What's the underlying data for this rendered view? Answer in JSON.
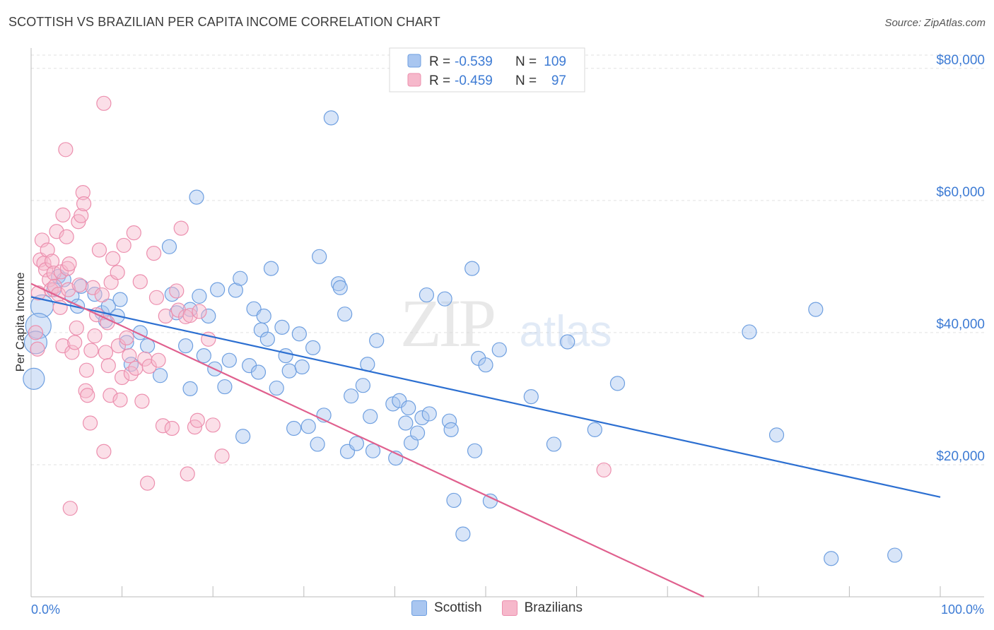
{
  "title": "SCOTTISH VS BRAZILIAN PER CAPITA INCOME CORRELATION CHART",
  "source": "Source: ZipAtlas.com",
  "watermark": {
    "zip": "ZIP",
    "atlas": "atlas"
  },
  "colors": {
    "scottish_fill": "#a9c6f0",
    "scottish_stroke": "#6e9fe0",
    "scottish_line": "#2c6fd1",
    "brazilian_fill": "#f6b8cb",
    "brazilian_stroke": "#ec8fae",
    "brazilian_line": "#e0608e",
    "axis_label": "#3d7bd4",
    "grid": "#e2e2e2"
  },
  "legend_top": {
    "r_label": "R =",
    "n_label": "N =",
    "rows": [
      {
        "series": "Scottish",
        "r": "-0.539",
        "n": "109"
      },
      {
        "series": "Brazilian",
        "r": "-0.459",
        "n": "97"
      }
    ]
  },
  "legend_bottom": [
    "Scottish",
    "Brazilians"
  ],
  "chart_data": {
    "type": "scatter",
    "title": "SCOTTISH VS BRAZILIAN PER CAPITA INCOME CORRELATION CHART",
    "xlabel": "",
    "ylabel": "Per Capita Income",
    "xlim": [
      0,
      100
    ],
    "ylim": [
      0,
      85000
    ],
    "x_tick_labels": [
      "0.0%",
      "100.0%"
    ],
    "y_ticks": [
      20000,
      40000,
      60000,
      80000
    ],
    "y_tick_labels": [
      "$20,000",
      "$40,000",
      "$60,000",
      "$80,000"
    ],
    "grid": true,
    "legend_position": "top-center",
    "series": [
      {
        "name": "Scottish",
        "r": -0.539,
        "n": 109,
        "trend": {
          "x": [
            0,
            100
          ],
          "y": [
            45400,
            15100
          ]
        },
        "points": [
          [
            1.2,
            44000
          ],
          [
            0.8,
            41000
          ],
          [
            0.5,
            38500
          ],
          [
            0.3,
            33000
          ],
          [
            2.5,
            46500
          ],
          [
            3,
            48500
          ],
          [
            3.6,
            48000
          ],
          [
            4.5,
            45500
          ],
          [
            5.1,
            44000
          ],
          [
            5.5,
            47000
          ],
          [
            7,
            45800
          ],
          [
            7.8,
            43000
          ],
          [
            8.2,
            41800
          ],
          [
            8.5,
            44000
          ],
          [
            9.5,
            42500
          ],
          [
            9.8,
            45000
          ],
          [
            10.5,
            38500
          ],
          [
            11,
            35200
          ],
          [
            12,
            40000
          ],
          [
            12.8,
            38000
          ],
          [
            14.2,
            33500
          ],
          [
            15.2,
            53000
          ],
          [
            15.5,
            45800
          ],
          [
            16,
            43000
          ],
          [
            17,
            38000
          ],
          [
            17.5,
            43500
          ],
          [
            17.5,
            31500
          ],
          [
            18.2,
            60500
          ],
          [
            18.5,
            45500
          ],
          [
            19,
            36500
          ],
          [
            19.5,
            42500
          ],
          [
            20.2,
            34500
          ],
          [
            20.5,
            46500
          ],
          [
            21.3,
            31800
          ],
          [
            21.8,
            35800
          ],
          [
            22.5,
            46400
          ],
          [
            23,
            48200
          ],
          [
            23.3,
            24300
          ],
          [
            24,
            35000
          ],
          [
            24.5,
            43600
          ],
          [
            25,
            34000
          ],
          [
            25.3,
            40400
          ],
          [
            25.6,
            42500
          ],
          [
            26,
            39000
          ],
          [
            26.4,
            49700
          ],
          [
            27,
            31600
          ],
          [
            27.6,
            40800
          ],
          [
            28,
            36500
          ],
          [
            28.4,
            34200
          ],
          [
            28.9,
            25500
          ],
          [
            29.5,
            39800
          ],
          [
            29.8,
            34800
          ],
          [
            30.5,
            25800
          ],
          [
            31,
            37700
          ],
          [
            31.5,
            23100
          ],
          [
            31.7,
            51500
          ],
          [
            32.2,
            27500
          ],
          [
            33,
            72500
          ],
          [
            33.8,
            47400
          ],
          [
            34,
            46800
          ],
          [
            34.5,
            42800
          ],
          [
            34.8,
            22000
          ],
          [
            35.2,
            30400
          ],
          [
            35.8,
            23200
          ],
          [
            36.5,
            32000
          ],
          [
            37,
            35200
          ],
          [
            37.3,
            27300
          ],
          [
            37.6,
            22100
          ],
          [
            38,
            38800
          ],
          [
            39.8,
            29200
          ],
          [
            40.1,
            21000
          ],
          [
            40.5,
            29700
          ],
          [
            41.2,
            26300
          ],
          [
            41.5,
            28600
          ],
          [
            41.8,
            23300
          ],
          [
            42.5,
            24800
          ],
          [
            43,
            27100
          ],
          [
            43.5,
            45700
          ],
          [
            43.8,
            27700
          ],
          [
            45.5,
            45100
          ],
          [
            46,
            26600
          ],
          [
            46.2,
            25300
          ],
          [
            46.5,
            14600
          ],
          [
            47.5,
            9500
          ],
          [
            48.5,
            49700
          ],
          [
            48.8,
            22100
          ],
          [
            49.2,
            36100
          ],
          [
            50,
            35100
          ],
          [
            50.5,
            14500
          ],
          [
            51.5,
            37400
          ],
          [
            55,
            30300
          ],
          [
            57.5,
            23100
          ],
          [
            59,
            38600
          ],
          [
            62,
            25300
          ],
          [
            64.5,
            32300
          ],
          [
            79,
            40100
          ],
          [
            82,
            24500
          ],
          [
            86.3,
            43500
          ],
          [
            88,
            5800
          ],
          [
            95,
            6300
          ]
        ]
      },
      {
        "name": "Brazilians",
        "r": -0.459,
        "n": 97,
        "trend": {
          "x": [
            0,
            74
          ],
          "y": [
            47400,
            0
          ]
        },
        "points": [
          [
            0.5,
            40000
          ],
          [
            0.7,
            37500
          ],
          [
            0.8,
            46000
          ],
          [
            1,
            51000
          ],
          [
            1.2,
            54000
          ],
          [
            1.4,
            50500
          ],
          [
            1.6,
            49500
          ],
          [
            1.8,
            52500
          ],
          [
            2,
            48000
          ],
          [
            2.2,
            46500
          ],
          [
            2.3,
            50800
          ],
          [
            2.5,
            49000
          ],
          [
            2.6,
            47000
          ],
          [
            2.8,
            55300
          ],
          [
            3,
            45800
          ],
          [
            3.2,
            43800
          ],
          [
            3.3,
            49200
          ],
          [
            3.5,
            38000
          ],
          [
            3.5,
            57800
          ],
          [
            3.8,
            67700
          ],
          [
            3.9,
            54500
          ],
          [
            4,
            49700
          ],
          [
            4.1,
            46500
          ],
          [
            4.2,
            50400
          ],
          [
            4.3,
            13400
          ],
          [
            4.5,
            37000
          ],
          [
            4.8,
            38500
          ],
          [
            5,
            40700
          ],
          [
            5.2,
            56800
          ],
          [
            5.3,
            47200
          ],
          [
            5.5,
            57700
          ],
          [
            5.7,
            61200
          ],
          [
            5.8,
            59500
          ],
          [
            6,
            31200
          ],
          [
            6.1,
            34300
          ],
          [
            6.2,
            30500
          ],
          [
            6.5,
            26300
          ],
          [
            6.6,
            37300
          ],
          [
            6.8,
            46800
          ],
          [
            7,
            39500
          ],
          [
            7.2,
            42700
          ],
          [
            7.5,
            52500
          ],
          [
            7.8,
            45700
          ],
          [
            8,
            22000
          ],
          [
            8,
            74700
          ],
          [
            8.2,
            37000
          ],
          [
            8.4,
            41500
          ],
          [
            8.5,
            35000
          ],
          [
            8.7,
            30500
          ],
          [
            8.8,
            47600
          ],
          [
            9,
            51200
          ],
          [
            9.5,
            49100
          ],
          [
            9.6,
            38000
          ],
          [
            9.8,
            29800
          ],
          [
            10,
            33200
          ],
          [
            10.2,
            53200
          ],
          [
            10.5,
            39200
          ],
          [
            10.8,
            36500
          ],
          [
            11,
            33800
          ],
          [
            11.3,
            55100
          ],
          [
            11.5,
            34600
          ],
          [
            12,
            47700
          ],
          [
            12.2,
            29600
          ],
          [
            12.5,
            36000
          ],
          [
            12.8,
            17200
          ],
          [
            13,
            34900
          ],
          [
            13.5,
            52000
          ],
          [
            13.8,
            45300
          ],
          [
            14,
            35800
          ],
          [
            14.5,
            25900
          ],
          [
            14.8,
            42500
          ],
          [
            15.5,
            25500
          ],
          [
            16,
            46300
          ],
          [
            16.2,
            43400
          ],
          [
            16.5,
            55800
          ],
          [
            17,
            42400
          ],
          [
            17.2,
            18600
          ],
          [
            17.5,
            42600
          ],
          [
            18,
            25700
          ],
          [
            18.3,
            26700
          ],
          [
            18.5,
            43200
          ],
          [
            19.5,
            39000
          ],
          [
            20,
            26000
          ],
          [
            21,
            21300
          ],
          [
            63,
            19200
          ]
        ]
      }
    ]
  }
}
